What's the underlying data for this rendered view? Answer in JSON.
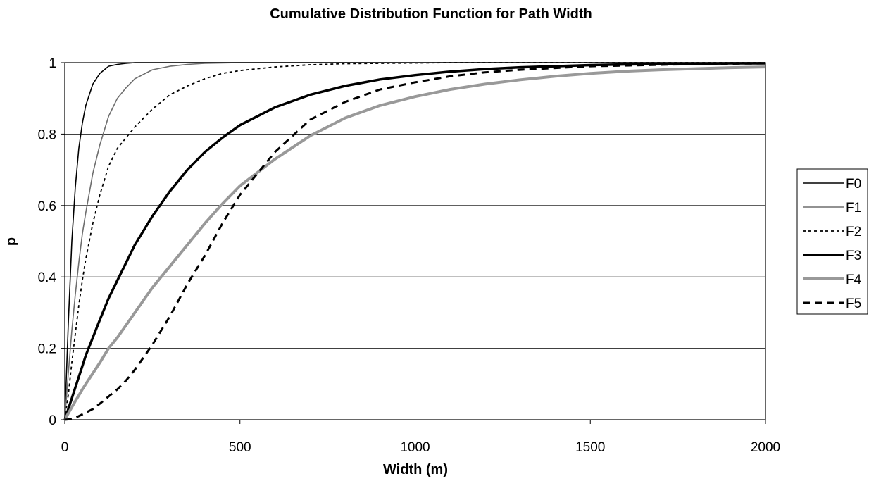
{
  "chart_data": {
    "type": "line",
    "title": "Cumulative Distribution Function for Path Width",
    "xlabel": "Width (m)",
    "ylabel": "p",
    "xlim": [
      0,
      2000
    ],
    "ylim": [
      0,
      1
    ],
    "x_ticks": [
      "0",
      "500",
      "1000",
      "1500",
      "2000"
    ],
    "y_ticks": [
      "0",
      "0.2",
      "0.4",
      "0.6",
      "0.8",
      "1"
    ],
    "grid": "horizontal",
    "legend_position": "right",
    "x": [
      0,
      10,
      20,
      30,
      40,
      50,
      60,
      80,
      100,
      125,
      150,
      175,
      200,
      250,
      300,
      350,
      400,
      450,
      500,
      600,
      700,
      800,
      900,
      1000,
      1100,
      1200,
      1300,
      1400,
      1500,
      1600,
      1700,
      1800,
      1900,
      2000
    ],
    "series": [
      {
        "name": "F0",
        "color": "#000000",
        "dash": "solid",
        "width": 1.6,
        "values": [
          0,
          0.27,
          0.5,
          0.65,
          0.76,
          0.83,
          0.88,
          0.94,
          0.97,
          0.99,
          0.995,
          0.998,
          1,
          1,
          1,
          1,
          1,
          1,
          1,
          1,
          1,
          1,
          1,
          1,
          1,
          1,
          1,
          1,
          1,
          1,
          1,
          1,
          1,
          1
        ]
      },
      {
        "name": "F1",
        "color": "#6e6e6e",
        "dash": "solid",
        "width": 1.6,
        "values": [
          0,
          0.13,
          0.25,
          0.35,
          0.44,
          0.52,
          0.58,
          0.69,
          0.77,
          0.85,
          0.9,
          0.93,
          0.955,
          0.98,
          0.99,
          0.995,
          0.998,
          0.999,
          1,
          1,
          1,
          1,
          1,
          1,
          1,
          1,
          1,
          1,
          1,
          1,
          1,
          1,
          1,
          1
        ]
      },
      {
        "name": "F2",
        "color": "#000000",
        "dash": "4,4",
        "width": 1.8,
        "values": [
          0,
          0.07,
          0.16,
          0.24,
          0.32,
          0.39,
          0.45,
          0.55,
          0.63,
          0.71,
          0.76,
          0.79,
          0.82,
          0.87,
          0.91,
          0.935,
          0.955,
          0.97,
          0.978,
          0.988,
          0.994,
          0.997,
          0.998,
          0.999,
          1,
          1,
          1,
          1,
          1,
          1,
          1,
          1,
          1,
          1
        ]
      },
      {
        "name": "F3",
        "color": "#000000",
        "dash": "solid",
        "width": 3.5,
        "values": [
          0,
          0.03,
          0.06,
          0.09,
          0.12,
          0.15,
          0.18,
          0.23,
          0.28,
          0.34,
          0.39,
          0.44,
          0.49,
          0.57,
          0.64,
          0.7,
          0.75,
          0.79,
          0.825,
          0.875,
          0.91,
          0.935,
          0.953,
          0.965,
          0.975,
          0.982,
          0.987,
          0.99,
          0.993,
          0.995,
          0.996,
          0.997,
          0.998,
          0.998
        ]
      },
      {
        "name": "F4",
        "color": "#999999",
        "dash": "solid",
        "width": 4,
        "values": [
          0,
          0.018,
          0.035,
          0.052,
          0.068,
          0.085,
          0.1,
          0.13,
          0.16,
          0.2,
          0.23,
          0.265,
          0.3,
          0.37,
          0.43,
          0.49,
          0.55,
          0.605,
          0.655,
          0.73,
          0.795,
          0.845,
          0.88,
          0.905,
          0.925,
          0.94,
          0.952,
          0.962,
          0.97,
          0.976,
          0.98,
          0.983,
          0.986,
          0.988
        ]
      },
      {
        "name": "F5",
        "color": "#000000",
        "dash": "10,7",
        "width": 3,
        "values": [
          0,
          0.001,
          0.003,
          0.006,
          0.01,
          0.015,
          0.02,
          0.03,
          0.045,
          0.065,
          0.085,
          0.11,
          0.14,
          0.21,
          0.29,
          0.38,
          0.46,
          0.55,
          0.63,
          0.75,
          0.84,
          0.89,
          0.925,
          0.945,
          0.962,
          0.973,
          0.98,
          0.985,
          0.99,
          0.992,
          0.994,
          0.996,
          0.997,
          0.998
        ]
      }
    ]
  }
}
